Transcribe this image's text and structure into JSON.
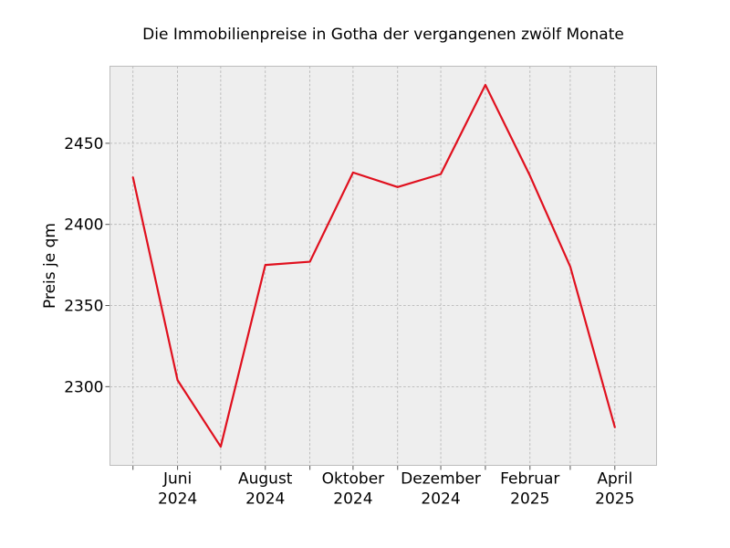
{
  "chart_data": {
    "type": "line",
    "title": "Die Immobilienpreise in Gotha der vergangenen zwölf Monate",
    "xlabel": "",
    "ylabel": "Preis je qm",
    "x": [
      "2024-05",
      "2024-06",
      "2024-07",
      "2024-08",
      "2024-09",
      "2024-10",
      "2024-11",
      "2024-12",
      "2025-01",
      "2025-02",
      "2025-03",
      "2025-04"
    ],
    "series": [
      {
        "values": [
          2429,
          2304,
          2263,
          2375,
          2377,
          2432,
          2423,
          2431,
          2486,
          2430,
          2374,
          2275
        ],
        "color": "#e0101e"
      }
    ],
    "x_tick_labels": [
      {
        "x": "2024-06",
        "line1": "Juni",
        "line2": "2024"
      },
      {
        "x": "2024-08",
        "line1": "August",
        "line2": "2024"
      },
      {
        "x": "2024-10",
        "line1": "Oktober",
        "line2": "2024"
      },
      {
        "x": "2024-12",
        "line1": "Dezember",
        "line2": "2024"
      },
      {
        "x": "2025-02",
        "line1": "Februar",
        "line2": "2025"
      },
      {
        "x": "2025-04",
        "line1": "April",
        "line2": "2025"
      }
    ],
    "y_ticks": [
      2300,
      2350,
      2400,
      2450
    ],
    "ylim": [
      2251.5,
      2497.5
    ],
    "xlim": [
      "2024-04-15",
      "2025-04-30"
    ],
    "grid": true,
    "background_color": "#eeeeee",
    "frame_color": "#bcbcbc"
  }
}
